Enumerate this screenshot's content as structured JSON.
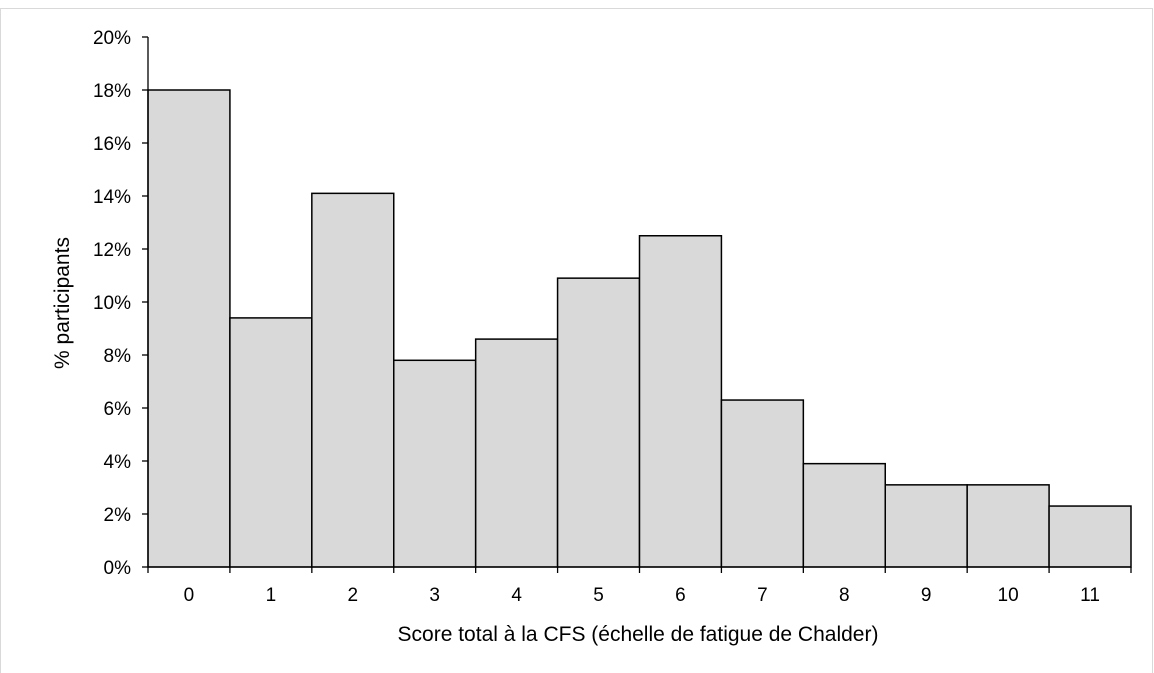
{
  "chart_data": {
    "type": "bar",
    "title": "",
    "xlabel": "Score total à la CFS (échelle de fatigue de Chalder)",
    "ylabel": "% participants",
    "categories": [
      "0",
      "1",
      "2",
      "3",
      "4",
      "5",
      "6",
      "7",
      "8",
      "9",
      "10",
      "11"
    ],
    "values": [
      18.0,
      9.4,
      14.1,
      7.8,
      8.6,
      10.9,
      12.5,
      6.3,
      3.9,
      3.1,
      3.1,
      2.3
    ],
    "value_format": "percent",
    "ylim": [
      0,
      20
    ],
    "yticks": [
      "0%",
      "2%",
      "4%",
      "6%",
      "8%",
      "10%",
      "12%",
      "14%",
      "16%",
      "18%",
      "20%"
    ],
    "grid": false,
    "legend": "none",
    "bar_fill": "#d9d9d9",
    "bar_stroke": "#000000"
  }
}
